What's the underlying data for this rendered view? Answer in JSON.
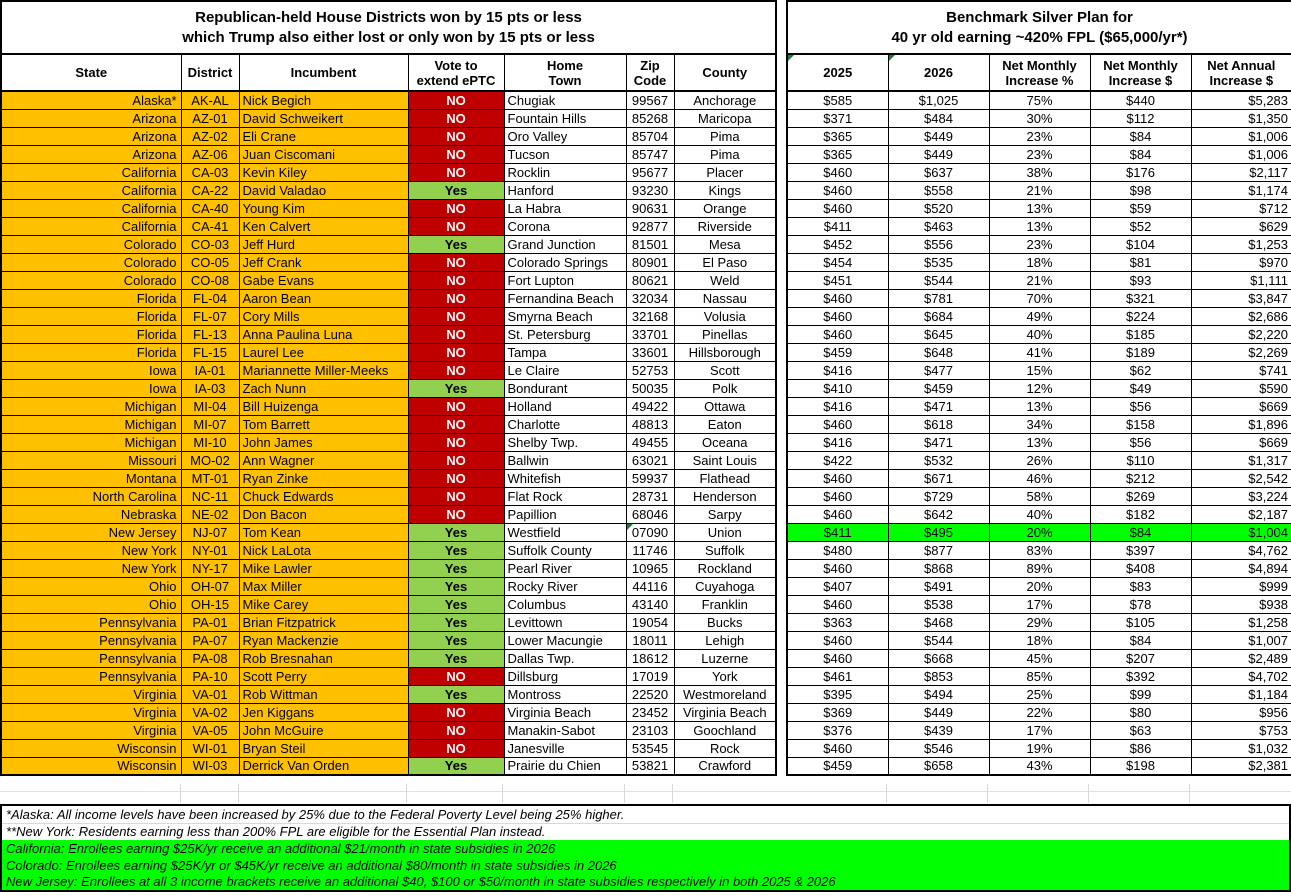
{
  "left_table": {
    "title_line1": "Republican-held House Districts won by 15 pts or less",
    "title_line2": "which Trump also either lost or only won by 15 pts or less",
    "columns": [
      "State",
      "District",
      "Incumbent",
      "Vote to\nextend ePTC",
      "Home\nTown",
      "Zip\nCode",
      "County"
    ]
  },
  "right_table": {
    "title_line1": "Benchmark Silver Plan for",
    "title_line2": "40 yr old earning ~420% FPL ($65,000/yr*)",
    "columns": [
      "2025",
      "2026",
      "Net Monthly\nIncrease %",
      "Net Monthly\nIncrease $",
      "Net Annual\nIncrease $"
    ]
  },
  "rows": [
    {
      "state": "Alaska*",
      "district": "AK-AL",
      "incumbent": "Nick Begich",
      "vote": "NO",
      "home_town": "Chugiak",
      "zip": "99567",
      "county": "Anchorage",
      "y2025": "$585",
      "y2026": "$1,025",
      "pct": "75%",
      "monthly": "$440",
      "annual": "$5,283"
    },
    {
      "state": "Arizona",
      "district": "AZ-01",
      "incumbent": "David Schweikert",
      "vote": "NO",
      "home_town": "Fountain Hills",
      "zip": "85268",
      "county": "Maricopa",
      "y2025": "$371",
      "y2026": "$484",
      "pct": "30%",
      "monthly": "$112",
      "annual": "$1,350"
    },
    {
      "state": "Arizona",
      "district": "AZ-02",
      "incumbent": "Eli Crane",
      "vote": "NO",
      "home_town": "Oro Valley",
      "zip": "85704",
      "county": "Pima",
      "y2025": "$365",
      "y2026": "$449",
      "pct": "23%",
      "monthly": "$84",
      "annual": "$1,006"
    },
    {
      "state": "Arizona",
      "district": "AZ-06",
      "incumbent": "Juan Ciscomani",
      "vote": "NO",
      "home_town": "Tucson",
      "zip": "85747",
      "county": "Pima",
      "y2025": "$365",
      "y2026": "$449",
      "pct": "23%",
      "monthly": "$84",
      "annual": "$1,006"
    },
    {
      "state": "California",
      "district": "CA-03",
      "incumbent": "Kevin Kiley",
      "vote": "NO",
      "home_town": "Rocklin",
      "zip": "95677",
      "county": "Placer",
      "y2025": "$460",
      "y2026": "$637",
      "pct": "38%",
      "monthly": "$176",
      "annual": "$2,117"
    },
    {
      "state": "California",
      "district": "CA-22",
      "incumbent": "David Valadao",
      "vote": "Yes",
      "home_town": "Hanford",
      "zip": "93230",
      "county": "Kings",
      "y2025": "$460",
      "y2026": "$558",
      "pct": "21%",
      "monthly": "$98",
      "annual": "$1,174"
    },
    {
      "state": "California",
      "district": "CA-40",
      "incumbent": "Young Kim",
      "vote": "NO",
      "home_town": "La Habra",
      "zip": "90631",
      "county": "Orange",
      "y2025": "$460",
      "y2026": "$520",
      "pct": "13%",
      "monthly": "$59",
      "annual": "$712"
    },
    {
      "state": "California",
      "district": "CA-41",
      "incumbent": "Ken Calvert",
      "vote": "NO",
      "home_town": "Corona",
      "zip": "92877",
      "county": "Riverside",
      "y2025": "$411",
      "y2026": "$463",
      "pct": "13%",
      "monthly": "$52",
      "annual": "$629"
    },
    {
      "state": "Colorado",
      "district": "CO-03",
      "incumbent": "Jeff Hurd",
      "vote": "Yes",
      "home_town": "Grand Junction",
      "zip": "81501",
      "county": "Mesa",
      "y2025": "$452",
      "y2026": "$556",
      "pct": "23%",
      "monthly": "$104",
      "annual": "$1,253"
    },
    {
      "state": "Colorado",
      "district": "CO-05",
      "incumbent": "Jeff Crank",
      "vote": "NO",
      "home_town": "Colorado Springs",
      "zip": "80901",
      "county": "El Paso",
      "y2025": "$454",
      "y2026": "$535",
      "pct": "18%",
      "monthly": "$81",
      "annual": "$970"
    },
    {
      "state": "Colorado",
      "district": "CO-08",
      "incumbent": "Gabe Evans",
      "vote": "NO",
      "home_town": "Fort Lupton",
      "zip": "80621",
      "county": "Weld",
      "y2025": "$451",
      "y2026": "$544",
      "pct": "21%",
      "monthly": "$93",
      "annual": "$1,111"
    },
    {
      "state": "Florida",
      "district": "FL-04",
      "incumbent": "Aaron Bean",
      "vote": "NO",
      "home_town": "Fernandina Beach",
      "zip": "32034",
      "county": "Nassau",
      "y2025": "$460",
      "y2026": "$781",
      "pct": "70%",
      "monthly": "$321",
      "annual": "$3,847"
    },
    {
      "state": "Florida",
      "district": "FL-07",
      "incumbent": "Cory Mills",
      "vote": "NO",
      "home_town": "Smyrna Beach",
      "zip": "32168",
      "county": "Volusia",
      "y2025": "$460",
      "y2026": "$684",
      "pct": "49%",
      "monthly": "$224",
      "annual": "$2,686"
    },
    {
      "state": "Florida",
      "district": "FL-13",
      "incumbent": "Anna Paulina Luna",
      "vote": "NO",
      "home_town": "St. Petersburg",
      "zip": "33701",
      "county": "Pinellas",
      "y2025": "$460",
      "y2026": "$645",
      "pct": "40%",
      "monthly": "$185",
      "annual": "$2,220"
    },
    {
      "state": "Florida",
      "district": "FL-15",
      "incumbent": "Laurel Lee",
      "vote": "NO",
      "home_town": "Tampa",
      "zip": "33601",
      "county": "Hillsborough",
      "y2025": "$459",
      "y2026": "$648",
      "pct": "41%",
      "monthly": "$189",
      "annual": "$2,269"
    },
    {
      "state": "Iowa",
      "district": "IA-01",
      "incumbent": "Mariannette Miller-Meeks",
      "vote": "NO",
      "home_town": "Le Claire",
      "zip": "52753",
      "county": "Scott",
      "y2025": "$416",
      "y2026": "$477",
      "pct": "15%",
      "monthly": "$62",
      "annual": "$741"
    },
    {
      "state": "Iowa",
      "district": "IA-03",
      "incumbent": "Zach Nunn",
      "vote": "Yes",
      "home_town": "Bondurant",
      "zip": "50035",
      "county": "Polk",
      "y2025": "$410",
      "y2026": "$459",
      "pct": "12%",
      "monthly": "$49",
      "annual": "$590"
    },
    {
      "state": "Michigan",
      "district": "MI-04",
      "incumbent": "Bill Huizenga",
      "vote": "NO",
      "home_town": "Holland",
      "zip": "49422",
      "county": "Ottawa",
      "y2025": "$416",
      "y2026": "$471",
      "pct": "13%",
      "monthly": "$56",
      "annual": "$669"
    },
    {
      "state": "Michigan",
      "district": "MI-07",
      "incumbent": "Tom Barrett",
      "vote": "NO",
      "home_town": "Charlotte",
      "zip": "48813",
      "county": "Eaton",
      "y2025": "$460",
      "y2026": "$618",
      "pct": "34%",
      "monthly": "$158",
      "annual": "$1,896"
    },
    {
      "state": "Michigan",
      "district": "MI-10",
      "incumbent": "John James",
      "vote": "NO",
      "home_town": "Shelby Twp.",
      "zip": "49455",
      "county": "Oceana",
      "y2025": "$416",
      "y2026": "$471",
      "pct": "13%",
      "monthly": "$56",
      "annual": "$669"
    },
    {
      "state": "Missouri",
      "district": "MO-02",
      "incumbent": "Ann Wagner",
      "vote": "NO",
      "home_town": "Ballwin",
      "zip": "63021",
      "county": "Saint Louis",
      "y2025": "$422",
      "y2026": "$532",
      "pct": "26%",
      "monthly": "$110",
      "annual": "$1,317"
    },
    {
      "state": "Montana",
      "district": "MT-01",
      "incumbent": "Ryan Zinke",
      "vote": "NO",
      "home_town": "Whitefish",
      "zip": "59937",
      "county": "Flathead",
      "y2025": "$460",
      "y2026": "$671",
      "pct": "46%",
      "monthly": "$212",
      "annual": "$2,542"
    },
    {
      "state": "North Carolina",
      "district": "NC-11",
      "incumbent": "Chuck Edwards",
      "vote": "NO",
      "home_town": "Flat Rock",
      "zip": "28731",
      "county": "Henderson",
      "y2025": "$460",
      "y2026": "$729",
      "pct": "58%",
      "monthly": "$269",
      "annual": "$3,224"
    },
    {
      "state": "Nebraska",
      "district": "NE-02",
      "incumbent": "Don Bacon",
      "vote": "NO",
      "home_town": "Papillion",
      "zip": "68046",
      "county": "Sarpy",
      "y2025": "$460",
      "y2026": "$642",
      "pct": "40%",
      "monthly": "$182",
      "annual": "$2,187"
    },
    {
      "state": "New Jersey",
      "district": "NJ-07",
      "incumbent": "Tom Kean",
      "vote": "Yes",
      "home_town": "Westfield",
      "zip": "07090",
      "county": "Union",
      "y2025": "$411",
      "y2026": "$495",
      "pct": "20%",
      "monthly": "$84",
      "annual": "$1,004",
      "highlight": true,
      "note": true
    },
    {
      "state": "New York",
      "district": "NY-01",
      "incumbent": "Nick LaLota",
      "vote": "Yes",
      "home_town": "Suffolk County",
      "zip": "11746",
      "county": "Suffolk",
      "y2025": "$480",
      "y2026": "$877",
      "pct": "83%",
      "monthly": "$397",
      "annual": "$4,762"
    },
    {
      "state": "New York",
      "district": "NY-17",
      "incumbent": "Mike Lawler",
      "vote": "Yes",
      "home_town": "Pearl River",
      "zip": "10965",
      "county": "Rockland",
      "y2025": "$460",
      "y2026": "$868",
      "pct": "89%",
      "monthly": "$408",
      "annual": "$4,894"
    },
    {
      "state": "Ohio",
      "district": "OH-07",
      "incumbent": "Max Miller",
      "vote": "Yes",
      "home_town": "Rocky River",
      "zip": "44116",
      "county": "Cuyahoga",
      "y2025": "$407",
      "y2026": "$491",
      "pct": "20%",
      "monthly": "$83",
      "annual": "$999"
    },
    {
      "state": "Ohio",
      "district": "OH-15",
      "incumbent": "Mike Carey",
      "vote": "Yes",
      "home_town": "Columbus",
      "zip": "43140",
      "county": "Franklin",
      "y2025": "$460",
      "y2026": "$538",
      "pct": "17%",
      "monthly": "$78",
      "annual": "$938"
    },
    {
      "state": "Pennsylvania",
      "district": "PA-01",
      "incumbent": "Brian Fitzpatrick",
      "vote": "Yes",
      "home_town": "Levittown",
      "zip": "19054",
      "county": "Bucks",
      "y2025": "$363",
      "y2026": "$468",
      "pct": "29%",
      "monthly": "$105",
      "annual": "$1,258"
    },
    {
      "state": "Pennsylvania",
      "district": "PA-07",
      "incumbent": "Ryan Mackenzie",
      "vote": "Yes",
      "home_town": "Lower Macungie",
      "zip": "18011",
      "county": "Lehigh",
      "y2025": "$460",
      "y2026": "$544",
      "pct": "18%",
      "monthly": "$84",
      "annual": "$1,007"
    },
    {
      "state": "Pennsylvania",
      "district": "PA-08",
      "incumbent": "Rob Bresnahan",
      "vote": "Yes",
      "home_town": "Dallas Twp.",
      "zip": "18612",
      "county": "Luzerne",
      "y2025": "$460",
      "y2026": "$668",
      "pct": "45%",
      "monthly": "$207",
      "annual": "$2,489"
    },
    {
      "state": "Pennsylvania",
      "district": "PA-10",
      "incumbent": "Scott Perry",
      "vote": "NO",
      "home_town": "Dillsburg",
      "zip": "17019",
      "county": "York",
      "y2025": "$461",
      "y2026": "$853",
      "pct": "85%",
      "monthly": "$392",
      "annual": "$4,702"
    },
    {
      "state": "Virginia",
      "district": "VA-01",
      "incumbent": "Rob Wittman",
      "vote": "Yes",
      "home_town": "Montross",
      "zip": "22520",
      "county": "Westmoreland",
      "y2025": "$395",
      "y2026": "$494",
      "pct": "25%",
      "monthly": "$99",
      "annual": "$1,184"
    },
    {
      "state": "Virginia",
      "district": "VA-02",
      "incumbent": "Jen Kiggans",
      "vote": "NO",
      "home_town": "Virginia Beach",
      "zip": "23452",
      "county": "Virginia Beach",
      "y2025": "$369",
      "y2026": "$449",
      "pct": "22%",
      "monthly": "$80",
      "annual": "$956"
    },
    {
      "state": "Virginia",
      "district": "VA-05",
      "incumbent": "John McGuire",
      "vote": "NO",
      "home_town": "Manakin-Sabot",
      "zip": "23103",
      "county": "Goochland",
      "y2025": "$376",
      "y2026": "$439",
      "pct": "17%",
      "monthly": "$63",
      "annual": "$753"
    },
    {
      "state": "Wisconsin",
      "district": "WI-01",
      "incumbent": "Bryan Steil",
      "vote": "NO",
      "home_town": "Janesville",
      "zip": "53545",
      "county": "Rock",
      "y2025": "$460",
      "y2026": "$546",
      "pct": "19%",
      "monthly": "$86",
      "annual": "$1,032"
    },
    {
      "state": "Wisconsin",
      "district": "WI-03",
      "incumbent": "Derrick Van Orden",
      "vote": "Yes",
      "home_town": "Prairie du Chien",
      "zip": "53821",
      "county": "Crawford",
      "y2025": "$459",
      "y2026": "$658",
      "pct": "43%",
      "monthly": "$198",
      "annual": "$2,381"
    }
  ],
  "footnotes": [
    {
      "text": "*Alaska: All income levels have been increased by 25% due to the Federal Poverty Level being 25% higher.",
      "highlight": false
    },
    {
      "text": "**New York: Residents earning less than 200% FPL are eligible for the Essential Plan instead.",
      "highlight": false
    },
    {
      "text": "California: Enrollees earning $25K/yr receive an additional $21/month in state subsidies in 2026",
      "highlight": true
    },
    {
      "text": "Colorado: Enrollees earning $25K/yr or $45K/yr receive an additional $80/month in state subsidies in 2026",
      "highlight": true
    },
    {
      "text": "New Jersey: Enrollees at all 3 income brackets receive an additional $40, $100 or $50/month in state subsidies respectively in both 2025 & 2026",
      "highlight": true
    }
  ],
  "colors": {
    "row_orange": "#FFC000",
    "no_red": "#C00000",
    "yes_green": "#92D050",
    "highlight_green": "#00FF00",
    "note_corner_green": "#1E7B3C"
  }
}
